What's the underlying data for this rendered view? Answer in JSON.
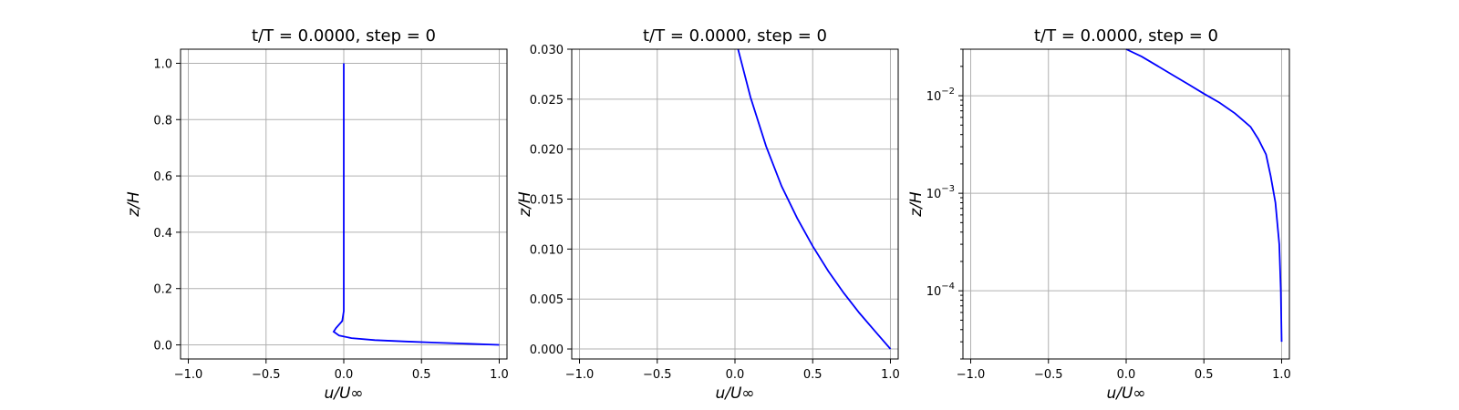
{
  "chart_data": [
    {
      "type": "line",
      "title": "t/T = 0.0000, step = 0",
      "xlabel": "u/U∞",
      "ylabel": "z/H",
      "xlim": [
        -1.05,
        1.05
      ],
      "ylim": [
        -0.05,
        1.05
      ],
      "yscale": "linear",
      "grid": true,
      "xticks": [
        {
          "v": -1.0,
          "label": "−1.0"
        },
        {
          "v": -0.5,
          "label": "−0.5"
        },
        {
          "v": 0.0,
          "label": "0.0"
        },
        {
          "v": 0.5,
          "label": "0.5"
        },
        {
          "v": 1.0,
          "label": "1.0"
        }
      ],
      "yticks": [
        {
          "v": 0.0,
          "label": "0.0"
        },
        {
          "v": 0.2,
          "label": "0.2"
        },
        {
          "v": 0.4,
          "label": "0.4"
        },
        {
          "v": 0.6,
          "label": "0.6"
        },
        {
          "v": 0.8,
          "label": "0.8"
        },
        {
          "v": 1.0,
          "label": "1.0"
        }
      ],
      "series": [
        {
          "color": "#0000ff",
          "x": [
            1.0,
            0.8,
            0.6,
            0.4,
            0.2,
            0.05,
            -0.03,
            -0.065,
            -0.05,
            -0.01,
            0.0,
            0.0,
            0.0,
            0.0
          ],
          "y": [
            0.0,
            0.004,
            0.008,
            0.012,
            0.017,
            0.024,
            0.033,
            0.047,
            0.06,
            0.085,
            0.12,
            0.2,
            0.5,
            1.0
          ]
        }
      ]
    },
    {
      "type": "line",
      "title": "t/T = 0.0000, step = 0",
      "xlabel": "u/U∞",
      "ylabel": "z/H",
      "xlim": [
        -1.05,
        1.05
      ],
      "ylim": [
        -0.001,
        0.03
      ],
      "yscale": "linear",
      "grid": true,
      "xticks": [
        {
          "v": -1.0,
          "label": "−1.0"
        },
        {
          "v": -0.5,
          "label": "−0.5"
        },
        {
          "v": 0.0,
          "label": "0.0"
        },
        {
          "v": 0.5,
          "label": "0.5"
        },
        {
          "v": 1.0,
          "label": "1.0"
        }
      ],
      "yticks": [
        {
          "v": 0.0,
          "label": "0.000"
        },
        {
          "v": 0.005,
          "label": "0.005"
        },
        {
          "v": 0.01,
          "label": "0.010"
        },
        {
          "v": 0.015,
          "label": "0.015"
        },
        {
          "v": 0.02,
          "label": "0.020"
        },
        {
          "v": 0.025,
          "label": "0.025"
        },
        {
          "v": 0.03,
          "label": "0.030"
        }
      ],
      "series": [
        {
          "color": "#0000ff",
          "x": [
            1.0,
            0.9,
            0.8,
            0.7,
            0.6,
            0.5,
            0.4,
            0.3,
            0.2,
            0.1,
            0.05,
            0.02
          ],
          "y": [
            0.0,
            0.0018,
            0.0036,
            0.0056,
            0.0078,
            0.0103,
            0.0131,
            0.0163,
            0.0203,
            0.0252,
            0.0282,
            0.03
          ]
        }
      ]
    },
    {
      "type": "line",
      "title": "t/T = 0.0000, step = 0",
      "xlabel": "u/U∞",
      "ylabel": "z/H",
      "xlim": [
        -1.05,
        1.05
      ],
      "ylim": [
        2e-05,
        0.03
      ],
      "yscale": "log",
      "grid": true,
      "xticks": [
        {
          "v": -1.0,
          "label": "−1.0"
        },
        {
          "v": -0.5,
          "label": "−0.5"
        },
        {
          "v": 0.0,
          "label": "0.0"
        },
        {
          "v": 0.5,
          "label": "0.5"
        },
        {
          "v": 1.0,
          "label": "1.0"
        }
      ],
      "yticks": [
        {
          "v": 0.0001,
          "base": "10",
          "exp": "−4"
        },
        {
          "v": 0.001,
          "base": "10",
          "exp": "−3"
        },
        {
          "v": 0.01,
          "base": "10",
          "exp": "−2"
        }
      ],
      "series": [
        {
          "color": "#0000ff",
          "x": [
            1.0,
            0.995,
            0.985,
            0.96,
            0.93,
            0.9,
            0.85,
            0.8,
            0.7,
            0.6,
            0.5,
            0.4,
            0.3,
            0.2,
            0.1,
            0.0
          ],
          "y": [
            3e-05,
            0.0001,
            0.0003,
            0.0008,
            0.0015,
            0.0025,
            0.0036,
            0.0048,
            0.0066,
            0.0085,
            0.0105,
            0.0131,
            0.0163,
            0.0203,
            0.0252,
            0.03
          ]
        }
      ]
    }
  ]
}
